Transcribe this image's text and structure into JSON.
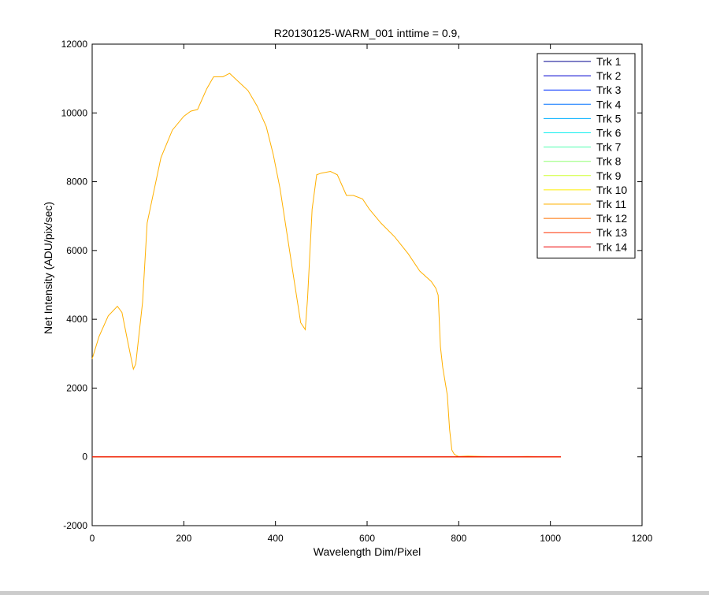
{
  "chart_data": {
    "type": "line",
    "title": "R20130125-WARM_001 inttime = 0.9,",
    "xlabel": "Wavelength Dim/Pixel",
    "ylabel": "Net Intensity (ADU/pix/sec)",
    "xlim": [
      0,
      1200
    ],
    "ylim": [
      -2000,
      12000
    ],
    "xticks": [
      0,
      200,
      400,
      600,
      800,
      1000,
      1200
    ],
    "yticks": [
      -2000,
      0,
      2000,
      4000,
      6000,
      8000,
      10000,
      12000
    ],
    "grid": false,
    "legend_position": "top-right",
    "series": [
      {
        "name": "Trk 1",
        "color": "#00008f",
        "x": [
          0,
          1023
        ],
        "y": [
          0,
          0
        ]
      },
      {
        "name": "Trk 2",
        "color": "#0000cf",
        "x": [
          0,
          1023
        ],
        "y": [
          0,
          0
        ]
      },
      {
        "name": "Trk 3",
        "color": "#0030ff",
        "x": [
          0,
          1023
        ],
        "y": [
          0,
          0
        ]
      },
      {
        "name": "Trk 4",
        "color": "#0070ff",
        "x": [
          0,
          1023
        ],
        "y": [
          0,
          0
        ]
      },
      {
        "name": "Trk 5",
        "color": "#00b0ff",
        "x": [
          0,
          1023
        ],
        "y": [
          0,
          0
        ]
      },
      {
        "name": "Trk 6",
        "color": "#10efef",
        "x": [
          0,
          1023
        ],
        "y": [
          0,
          0
        ]
      },
      {
        "name": "Trk 7",
        "color": "#50ffaf",
        "x": [
          0,
          1023
        ],
        "y": [
          0,
          0
        ]
      },
      {
        "name": "Trk 8",
        "color": "#8fff70",
        "x": [
          0,
          1023
        ],
        "y": [
          0,
          0
        ]
      },
      {
        "name": "Trk 9",
        "color": "#cfff30",
        "x": [
          0,
          1023
        ],
        "y": [
          0,
          0
        ]
      },
      {
        "name": "Trk 10",
        "color": "#ffef00",
        "x": [
          0,
          1023
        ],
        "y": [
          0,
          0
        ]
      },
      {
        "name": "Trk 11",
        "color": "#ffb000",
        "x": [
          0,
          15,
          35,
          55,
          65,
          80,
          90,
          95,
          110,
          120,
          150,
          175,
          200,
          215,
          230,
          250,
          265,
          285,
          300,
          320,
          340,
          360,
          380,
          395,
          410,
          425,
          440,
          455,
          465,
          470,
          480,
          490,
          500,
          520,
          535,
          555,
          570,
          590,
          605,
          630,
          660,
          690,
          715,
          740,
          750,
          755,
          760,
          765,
          775,
          780,
          785,
          790,
          795,
          800,
          820,
          850,
          900,
          950,
          1000,
          1023
        ],
        "y": [
          2850,
          3500,
          4100,
          4380,
          4200,
          3200,
          2550,
          2700,
          4500,
          6800,
          8700,
          9500,
          9900,
          10050,
          10100,
          10700,
          11050,
          11050,
          11150,
          10900,
          10650,
          10200,
          9600,
          8800,
          7800,
          6500,
          5200,
          3900,
          3700,
          4600,
          7200,
          8200,
          8250,
          8300,
          8200,
          7600,
          7600,
          7500,
          7200,
          6800,
          6400,
          5900,
          5400,
          5100,
          4900,
          4700,
          3200,
          2600,
          1800,
          800,
          200,
          80,
          40,
          10,
          20,
          10,
          0,
          10,
          0,
          0
        ]
      },
      {
        "name": "Trk 12",
        "color": "#ff7000",
        "x": [
          0,
          1023
        ],
        "y": [
          0,
          0
        ]
      },
      {
        "name": "Trk 13",
        "color": "#ff3000",
        "x": [
          0,
          1023
        ],
        "y": [
          0,
          0
        ]
      },
      {
        "name": "Trk 14",
        "color": "#ef0000",
        "x": [
          0,
          1023
        ],
        "y": [
          0,
          0
        ]
      }
    ]
  }
}
